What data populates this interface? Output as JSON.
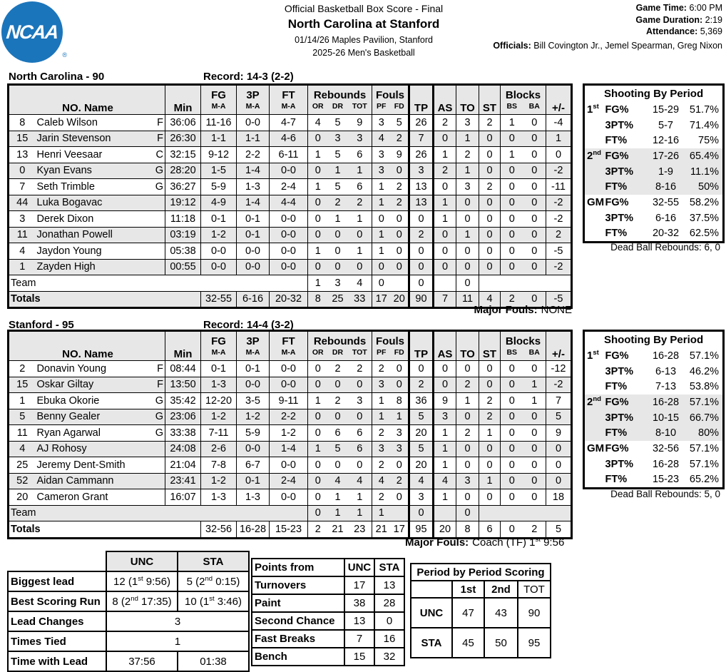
{
  "header": {
    "logo": "NCAA",
    "logo_reg": "®",
    "report_title": "Official Basketball Box Score - Final",
    "matchup": "North Carolina at Stanford",
    "venue_line": "01/14/26 Maples Pavilion, Stanford",
    "season_line": "2025-26 Men's Basketball",
    "game_time_label": "Game Time:",
    "game_time": "6:00 PM",
    "game_duration_label": "Game Duration:",
    "game_duration": "2:19",
    "attendance_label": "Attendance:",
    "attendance": "5,369",
    "officials_label": "Officials:",
    "officials": "Bill Covington Jr., Jemel Spearman, Greg Nixon"
  },
  "columns": {
    "no_name": "NO. Name",
    "min": "Min",
    "fg": "FG",
    "p3": "3P",
    "ft": "FT",
    "ma": "M-A",
    "rebounds": "Rebounds",
    "or": "OR",
    "dr": "DR",
    "tot": "TOT",
    "fouls": "Fouls",
    "pf": "PF",
    "fd": "FD",
    "tp": "TP",
    "as": "AS",
    "to": "TO",
    "st": "ST",
    "blocks": "Blocks",
    "bs": "BS",
    "ba": "BA",
    "pm": "+/-"
  },
  "teams": [
    {
      "name_line": "North Carolina - 90",
      "record_line": "Record: 14-3 (2-2)",
      "players": [
        {
          "no": "8",
          "name": "Caleb Wilson",
          "pos": "F",
          "min": "36:06",
          "fg": "11-16",
          "p3": "0-0",
          "ft": "4-7",
          "or": "4",
          "dr": "5",
          "tot": "9",
          "pf": "3",
          "fd": "5",
          "tp": "26",
          "as": "2",
          "to": "3",
          "st": "2",
          "bs": "1",
          "ba": "0",
          "pm": "-4"
        },
        {
          "no": "15",
          "name": "Jarin Stevenson",
          "pos": "F",
          "min": "26:30",
          "fg": "1-1",
          "p3": "1-1",
          "ft": "4-6",
          "or": "0",
          "dr": "3",
          "tot": "3",
          "pf": "4",
          "fd": "2",
          "tp": "7",
          "as": "0",
          "to": "1",
          "st": "0",
          "bs": "0",
          "ba": "0",
          "pm": "1"
        },
        {
          "no": "13",
          "name": "Henri Veesaar",
          "pos": "C",
          "min": "32:15",
          "fg": "9-12",
          "p3": "2-2",
          "ft": "6-11",
          "or": "1",
          "dr": "5",
          "tot": "6",
          "pf": "3",
          "fd": "9",
          "tp": "26",
          "as": "1",
          "to": "2",
          "st": "0",
          "bs": "1",
          "ba": "0",
          "pm": "0"
        },
        {
          "no": "0",
          "name": "Kyan Evans",
          "pos": "G",
          "min": "28:20",
          "fg": "1-5",
          "p3": "1-4",
          "ft": "0-0",
          "or": "0",
          "dr": "1",
          "tot": "1",
          "pf": "3",
          "fd": "0",
          "tp": "3",
          "as": "2",
          "to": "1",
          "st": "0",
          "bs": "0",
          "ba": "0",
          "pm": "-2"
        },
        {
          "no": "7",
          "name": "Seth Trimble",
          "pos": "G",
          "min": "36:27",
          "fg": "5-9",
          "p3": "1-3",
          "ft": "2-4",
          "or": "1",
          "dr": "5",
          "tot": "6",
          "pf": "1",
          "fd": "2",
          "tp": "13",
          "as": "0",
          "to": "3",
          "st": "2",
          "bs": "0",
          "ba": "0",
          "pm": "-11"
        },
        {
          "no": "44",
          "name": "Luka Bogavac",
          "pos": "",
          "min": "19:12",
          "fg": "4-9",
          "p3": "1-4",
          "ft": "4-4",
          "or": "0",
          "dr": "2",
          "tot": "2",
          "pf": "1",
          "fd": "2",
          "tp": "13",
          "as": "1",
          "to": "0",
          "st": "0",
          "bs": "0",
          "ba": "0",
          "pm": "-2"
        },
        {
          "no": "3",
          "name": "Derek Dixon",
          "pos": "",
          "min": "11:18",
          "fg": "0-1",
          "p3": "0-1",
          "ft": "0-0",
          "or": "0",
          "dr": "1",
          "tot": "1",
          "pf": "0",
          "fd": "0",
          "tp": "0",
          "as": "1",
          "to": "0",
          "st": "0",
          "bs": "0",
          "ba": "0",
          "pm": "-2"
        },
        {
          "no": "11",
          "name": "Jonathan Powell",
          "pos": "",
          "min": "03:19",
          "fg": "1-2",
          "p3": "0-1",
          "ft": "0-0",
          "or": "0",
          "dr": "0",
          "tot": "0",
          "pf": "1",
          "fd": "0",
          "tp": "2",
          "as": "0",
          "to": "1",
          "st": "0",
          "bs": "0",
          "ba": "0",
          "pm": "2"
        },
        {
          "no": "4",
          "name": "Jaydon Young",
          "pos": "",
          "min": "05:38",
          "fg": "0-0",
          "p3": "0-0",
          "ft": "0-0",
          "or": "1",
          "dr": "0",
          "tot": "1",
          "pf": "1",
          "fd": "0",
          "tp": "0",
          "as": "0",
          "to": "0",
          "st": "0",
          "bs": "0",
          "ba": "0",
          "pm": "-5"
        },
        {
          "no": "1",
          "name": "Zayden High",
          "pos": "",
          "min": "00:55",
          "fg": "0-0",
          "p3": "0-0",
          "ft": "0-0",
          "or": "0",
          "dr": "0",
          "tot": "0",
          "pf": "0",
          "fd": "0",
          "tp": "0",
          "as": "0",
          "to": "0",
          "st": "0",
          "bs": "0",
          "ba": "0",
          "pm": "-2"
        }
      ],
      "team_row": {
        "label": "Team",
        "or": "1",
        "dr": "3",
        "tot": "4",
        "pf": "0",
        "fd": "",
        "tp": "0",
        "as": "",
        "to": "0"
      },
      "totals": {
        "label": "Totals",
        "fg": "32-55",
        "p3": "6-16",
        "ft": "20-32",
        "or": "8",
        "dr": "25",
        "tot": "33",
        "pf": "17",
        "fd": "20",
        "tp": "90",
        "as": "7",
        "to": "11",
        "st": "4",
        "bs": "2",
        "ba": "0",
        "pm": "-5"
      },
      "major_fouls_label": "Major Fouls:",
      "major_fouls": {
        "pre": "NONE",
        "sup": "",
        "post": ""
      },
      "shooting": {
        "title": "Shooting By Period",
        "rows": [
          {
            "ppre": "1",
            "psup": "st",
            "stat": "FG%",
            "ma": "15-29",
            "pct": "51.7%"
          },
          {
            "ppre": "",
            "psup": "",
            "stat": "3PT%",
            "ma": "5-7",
            "pct": "71.4%"
          },
          {
            "ppre": "",
            "psup": "",
            "stat": "FT%",
            "ma": "12-16",
            "pct": "75%"
          },
          {
            "ppre": "2",
            "psup": "nd",
            "stat": "FG%",
            "ma": "17-26",
            "pct": "65.4%"
          },
          {
            "ppre": "",
            "psup": "",
            "stat": "3PT%",
            "ma": "1-9",
            "pct": "11.1%"
          },
          {
            "ppre": "",
            "psup": "",
            "stat": "FT%",
            "ma": "8-16",
            "pct": "50%"
          },
          {
            "ppre": "GM",
            "psup": "",
            "stat": "FG%",
            "ma": "32-55",
            "pct": "58.2%"
          },
          {
            "ppre": "",
            "psup": "",
            "stat": "3PT%",
            "ma": "6-16",
            "pct": "37.5%"
          },
          {
            "ppre": "",
            "psup": "",
            "stat": "FT%",
            "ma": "20-32",
            "pct": "62.5%"
          }
        ]
      },
      "dead_ball": "Dead Ball Rebounds: 6, 0"
    },
    {
      "name_line": "Stanford - 95",
      "record_line": "Record: 14-4 (3-2)",
      "players": [
        {
          "no": "2",
          "name": "Donavin Young",
          "pos": "F",
          "min": "08:44",
          "fg": "0-1",
          "p3": "0-1",
          "ft": "0-0",
          "or": "0",
          "dr": "2",
          "tot": "2",
          "pf": "2",
          "fd": "0",
          "tp": "0",
          "as": "0",
          "to": "0",
          "st": "0",
          "bs": "0",
          "ba": "0",
          "pm": "-12"
        },
        {
          "no": "15",
          "name": "Oskar Giltay",
          "pos": "F",
          "min": "13:50",
          "fg": "1-3",
          "p3": "0-0",
          "ft": "0-0",
          "or": "0",
          "dr": "0",
          "tot": "0",
          "pf": "3",
          "fd": "0",
          "tp": "2",
          "as": "0",
          "to": "2",
          "st": "0",
          "bs": "0",
          "ba": "1",
          "pm": "-2"
        },
        {
          "no": "1",
          "name": "Ebuka Okorie",
          "pos": "G",
          "min": "35:42",
          "fg": "12-20",
          "p3": "3-5",
          "ft": "9-11",
          "or": "1",
          "dr": "2",
          "tot": "3",
          "pf": "1",
          "fd": "8",
          "tp": "36",
          "as": "9",
          "to": "1",
          "st": "2",
          "bs": "0",
          "ba": "1",
          "pm": "7"
        },
        {
          "no": "5",
          "name": "Benny Gealer",
          "pos": "G",
          "min": "23:06",
          "fg": "1-2",
          "p3": "1-2",
          "ft": "2-2",
          "or": "0",
          "dr": "0",
          "tot": "0",
          "pf": "1",
          "fd": "1",
          "tp": "5",
          "as": "3",
          "to": "0",
          "st": "2",
          "bs": "0",
          "ba": "0",
          "pm": "5"
        },
        {
          "no": "11",
          "name": "Ryan Agarwal",
          "pos": "G",
          "min": "33:38",
          "fg": "7-11",
          "p3": "5-9",
          "ft": "1-2",
          "or": "0",
          "dr": "6",
          "tot": "6",
          "pf": "2",
          "fd": "3",
          "tp": "20",
          "as": "1",
          "to": "2",
          "st": "1",
          "bs": "0",
          "ba": "0",
          "pm": "9"
        },
        {
          "no": "4",
          "name": "AJ Rohosy",
          "pos": "",
          "min": "24:08",
          "fg": "2-6",
          "p3": "0-0",
          "ft": "1-4",
          "or": "1",
          "dr": "5",
          "tot": "6",
          "pf": "3",
          "fd": "3",
          "tp": "5",
          "as": "1",
          "to": "0",
          "st": "0",
          "bs": "0",
          "ba": "0",
          "pm": "0"
        },
        {
          "no": "25",
          "name": "Jeremy Dent-Smith",
          "pos": "",
          "min": "21:04",
          "fg": "7-8",
          "p3": "6-7",
          "ft": "0-0",
          "or": "0",
          "dr": "0",
          "tot": "0",
          "pf": "2",
          "fd": "0",
          "tp": "20",
          "as": "1",
          "to": "0",
          "st": "0",
          "bs": "0",
          "ba": "0",
          "pm": "0"
        },
        {
          "no": "52",
          "name": "Aidan Cammann",
          "pos": "",
          "min": "23:41",
          "fg": "1-2",
          "p3": "0-1",
          "ft": "2-4",
          "or": "0",
          "dr": "4",
          "tot": "4",
          "pf": "4",
          "fd": "2",
          "tp": "4",
          "as": "4",
          "to": "3",
          "st": "1",
          "bs": "0",
          "ba": "0",
          "pm": "0"
        },
        {
          "no": "20",
          "name": "Cameron Grant",
          "pos": "",
          "min": "16:07",
          "fg": "1-3",
          "p3": "1-3",
          "ft": "0-0",
          "or": "0",
          "dr": "1",
          "tot": "1",
          "pf": "2",
          "fd": "0",
          "tp": "3",
          "as": "1",
          "to": "0",
          "st": "0",
          "bs": "0",
          "ba": "0",
          "pm": "18"
        }
      ],
      "team_row": {
        "label": "Team",
        "or": "0",
        "dr": "1",
        "tot": "1",
        "pf": "1",
        "fd": "",
        "tp": "0",
        "as": "",
        "to": "0"
      },
      "totals": {
        "label": "Totals",
        "fg": "32-56",
        "p3": "16-28",
        "ft": "15-23",
        "or": "2",
        "dr": "21",
        "tot": "23",
        "pf": "21",
        "fd": "17",
        "tp": "95",
        "as": "20",
        "to": "8",
        "st": "6",
        "bs": "0",
        "ba": "2",
        "pm": "5"
      },
      "major_fouls_label": "Major Fouls:",
      "major_fouls": {
        "pre": "Coach (TF) 1",
        "sup": "st",
        "post": " 9:56"
      },
      "shooting": {
        "title": "Shooting By Period",
        "rows": [
          {
            "ppre": "1",
            "psup": "st",
            "stat": "FG%",
            "ma": "16-28",
            "pct": "57.1%"
          },
          {
            "ppre": "",
            "psup": "",
            "stat": "3PT%",
            "ma": "6-13",
            "pct": "46.2%"
          },
          {
            "ppre": "",
            "psup": "",
            "stat": "FT%",
            "ma": "7-13",
            "pct": "53.8%"
          },
          {
            "ppre": "2",
            "psup": "nd",
            "stat": "FG%",
            "ma": "16-28",
            "pct": "57.1%"
          },
          {
            "ppre": "",
            "psup": "",
            "stat": "3PT%",
            "ma": "10-15",
            "pct": "66.7%"
          },
          {
            "ppre": "",
            "psup": "",
            "stat": "FT%",
            "ma": "8-10",
            "pct": "80%"
          },
          {
            "ppre": "GM",
            "psup": "",
            "stat": "FG%",
            "ma": "32-56",
            "pct": "57.1%"
          },
          {
            "ppre": "",
            "psup": "",
            "stat": "3PT%",
            "ma": "16-28",
            "pct": "57.1%"
          },
          {
            "ppre": "",
            "psup": "",
            "stat": "FT%",
            "ma": "15-23",
            "pct": "65.2%"
          }
        ]
      },
      "dead_ball": "Dead Ball Rebounds: 5, 0"
    }
  ],
  "game_stats": {
    "headers": [
      "UNC",
      "STA"
    ],
    "rows": [
      {
        "label": "Biggest lead",
        "unc": {
          "pre": "12 (1",
          "sup": "st",
          "post": " 9:56)"
        },
        "sta": {
          "pre": "5 (2",
          "sup": "nd",
          "post": " 0:15)"
        }
      },
      {
        "label": "Best Scoring Run",
        "unc": {
          "pre": "8 (2",
          "sup": "nd",
          "post": " 17:35)"
        },
        "sta": {
          "pre": "10 (1",
          "sup": "st",
          "post": " 3:46)"
        }
      },
      {
        "label": "Lead Changes",
        "span": "3"
      },
      {
        "label": "Times Tied",
        "span": "1"
      },
      {
        "label": "Time with Lead",
        "unc": {
          "pre": "37:56",
          "sup": "",
          "post": ""
        },
        "sta": {
          "pre": "01:38",
          "sup": "",
          "post": ""
        }
      }
    ]
  },
  "points_from": {
    "header": {
      "label": "Points from",
      "unc": "UNC",
      "sta": "STA"
    },
    "rows": [
      {
        "label": "Turnovers",
        "unc": "17",
        "sta": "13"
      },
      {
        "label": "Paint",
        "unc": "38",
        "sta": "28"
      },
      {
        "label": "Second Chance",
        "unc": "13",
        "sta": "0"
      },
      {
        "label": "Fast Breaks",
        "unc": "7",
        "sta": "16"
      },
      {
        "label": "Bench",
        "unc": "15",
        "sta": "32"
      }
    ]
  },
  "period_scoring": {
    "title": "Period by Period Scoring",
    "cols": [
      "1st",
      "2nd",
      "TOT"
    ],
    "rows": [
      {
        "team": "UNC",
        "p1": "47",
        "p2": "43",
        "tot": "90"
      },
      {
        "team": "STA",
        "p1": "45",
        "p2": "50",
        "tot": "95"
      }
    ]
  }
}
